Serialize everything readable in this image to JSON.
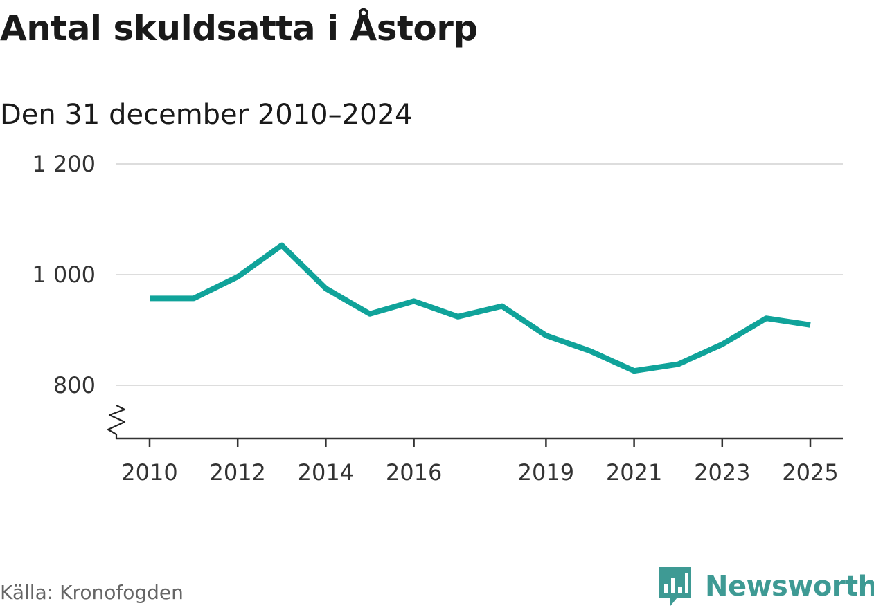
{
  "chart_data": {
    "type": "line",
    "title": "Antal skuldsatta i Åstorp",
    "subtitle": "Den 31 december 2010–2024",
    "x": [
      2010,
      2011,
      2012,
      2013,
      2014,
      2015,
      2016,
      2017,
      2018,
      2019,
      2020,
      2021,
      2022,
      2023,
      2024,
      2025
    ],
    "series": [
      {
        "values": [
          957,
          957,
          996,
          1053,
          975,
          929,
          952,
          924,
          943,
          890,
          862,
          826,
          838,
          874,
          921,
          909
        ]
      }
    ],
    "x_ticks": [
      2010,
      2012,
      2014,
      2016,
      2019,
      2021,
      2023,
      2025
    ],
    "x_tick_labels": [
      "2010",
      "2012",
      "2014",
      "2016",
      "2019",
      "2021",
      "2023",
      "2025"
    ],
    "y_ticks": [
      800,
      1000,
      1200
    ],
    "y_tick_labels": [
      "800",
      "1 000",
      "1 200"
    ],
    "ylim": [
      700,
      1200
    ],
    "xlim": [
      2010,
      2025
    ],
    "y_axis_break": true,
    "grid": true,
    "line_color": "#10a39a",
    "grid_color": "#dddddd"
  },
  "footer": {
    "source": "Källa: Kronofogden",
    "brand": "Newsworthy",
    "brand_icon": "bar-chart-speech-bubble-icon",
    "brand_color": "#3e9a94"
  }
}
